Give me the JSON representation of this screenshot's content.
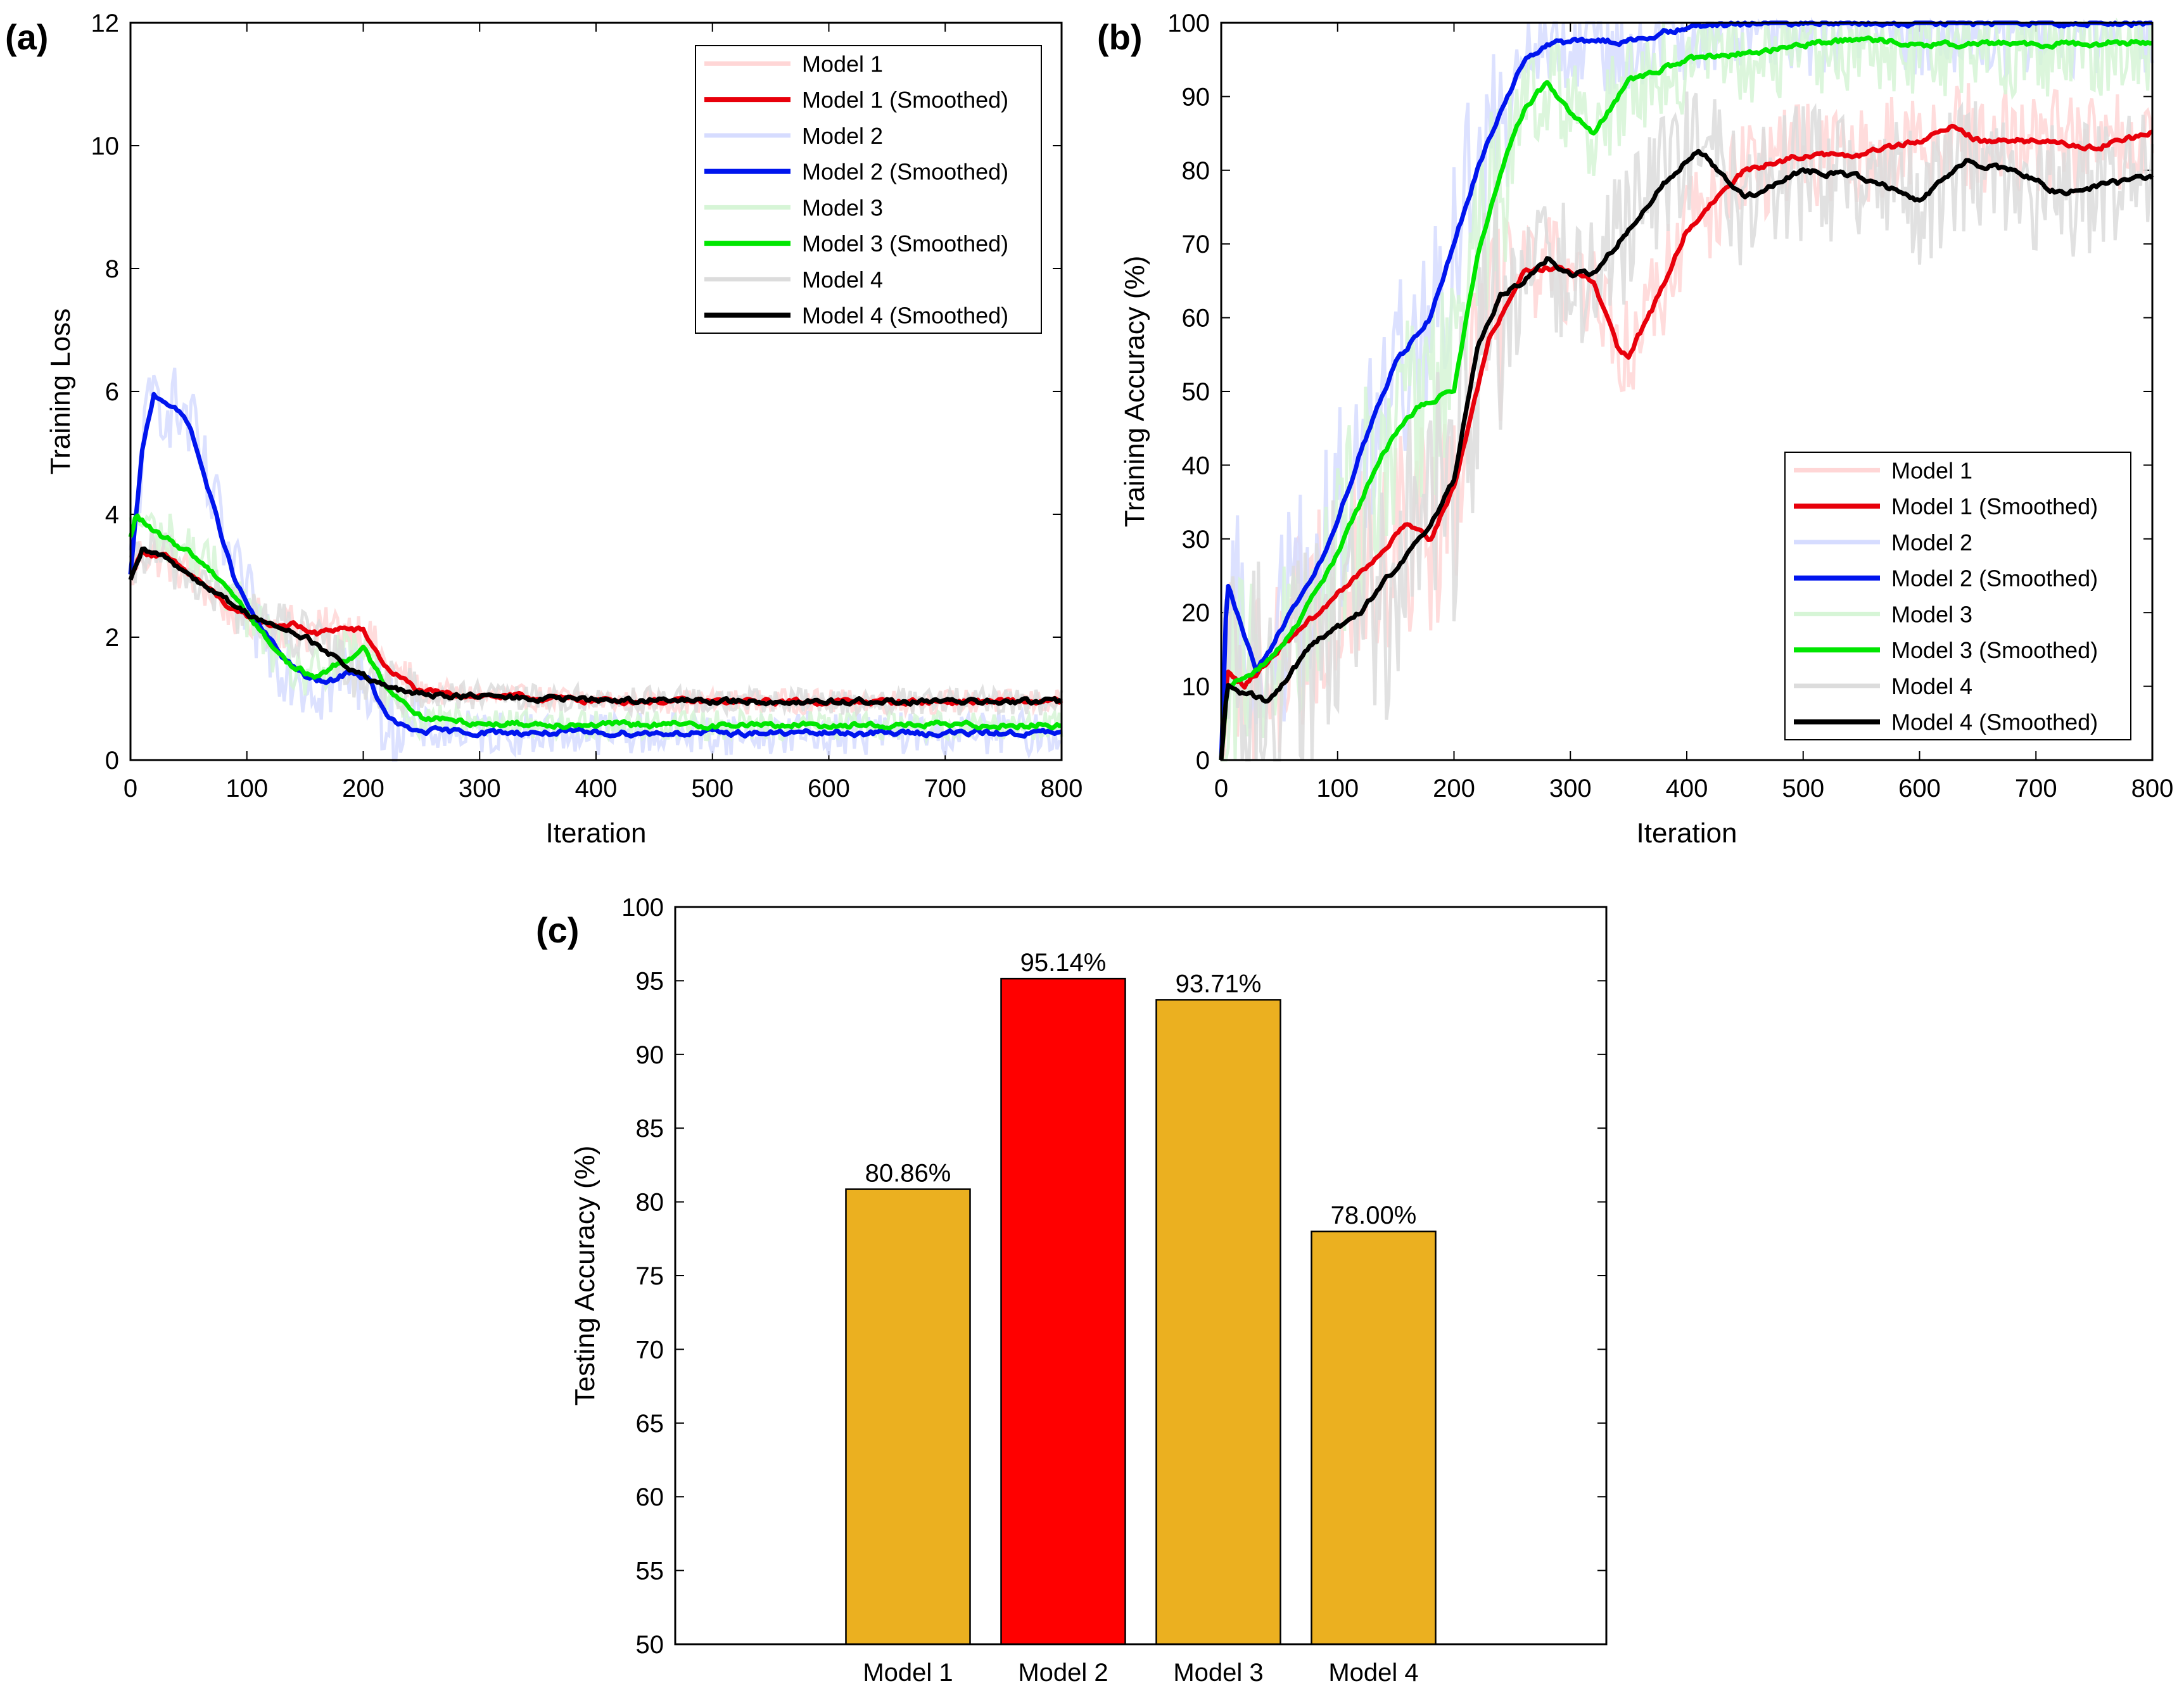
{
  "figure": {
    "panel_labels": [
      "(a)",
      "(b)",
      "(c)"
    ]
  },
  "chart_data": [
    {
      "id": "a",
      "type": "line",
      "title": "",
      "xlabel": "Iteration",
      "ylabel": "Training Loss",
      "xlim": [
        0,
        800
      ],
      "ylim": [
        0,
        12
      ],
      "xticks": [
        0,
        100,
        200,
        300,
        400,
        500,
        600,
        700,
        800
      ],
      "yticks": [
        0,
        2,
        4,
        6,
        8,
        10,
        12
      ],
      "legend_position": "top-right",
      "series": [
        {
          "name": "Model 1",
          "color": "#ffd6d6",
          "raw": true,
          "noise": 0.25,
          "x": [
            0,
            10,
            30,
            60,
            90,
            120,
            140,
            160,
            180,
            200,
            220,
            250,
            300,
            400,
            500,
            600,
            700,
            800
          ],
          "y": [
            3.0,
            3.4,
            3.3,
            2.9,
            2.4,
            2.2,
            2.2,
            2.05,
            2.15,
            2.1,
            1.5,
            1.1,
            1.05,
            0.97,
            0.95,
            0.95,
            0.95,
            0.95
          ]
        },
        {
          "name": "Model 1 (Smoothed)",
          "color": "#e8000b",
          "raw": false,
          "x": [
            0,
            10,
            30,
            60,
            90,
            120,
            140,
            160,
            180,
            200,
            220,
            250,
            300,
            400,
            500,
            600,
            700,
            800
          ],
          "y": [
            3.0,
            3.4,
            3.3,
            2.9,
            2.4,
            2.2,
            2.2,
            2.05,
            2.15,
            2.1,
            1.5,
            1.1,
            1.05,
            0.97,
            0.95,
            0.95,
            0.95,
            0.95
          ]
        },
        {
          "name": "Model 2",
          "color": "#d6dcff",
          "raw": true,
          "noise": 0.45,
          "x": [
            0,
            10,
            20,
            30,
            50,
            70,
            90,
            110,
            130,
            150,
            170,
            190,
            205,
            220,
            240,
            300,
            400,
            500,
            600,
            700,
            800
          ],
          "y": [
            3.0,
            5.0,
            5.95,
            5.85,
            5.5,
            4.2,
            2.9,
            2.2,
            1.7,
            1.35,
            1.25,
            1.45,
            1.3,
            0.7,
            0.48,
            0.45,
            0.44,
            0.44,
            0.44,
            0.44,
            0.44
          ]
        },
        {
          "name": "Model 2 (Smoothed)",
          "color": "#0015ee",
          "raw": false,
          "x": [
            0,
            10,
            20,
            30,
            50,
            70,
            90,
            110,
            130,
            150,
            170,
            190,
            205,
            220,
            240,
            300,
            400,
            500,
            600,
            700,
            800
          ],
          "y": [
            3.0,
            5.0,
            5.95,
            5.85,
            5.5,
            4.2,
            2.9,
            2.2,
            1.7,
            1.35,
            1.25,
            1.45,
            1.3,
            0.7,
            0.48,
            0.45,
            0.44,
            0.44,
            0.44,
            0.44,
            0.44
          ]
        },
        {
          "name": "Model 3",
          "color": "#d6f5d6",
          "raw": true,
          "noise": 0.3,
          "x": [
            0,
            5,
            20,
            50,
            80,
            100,
            120,
            140,
            160,
            180,
            200,
            220,
            250,
            300,
            400,
            500,
            600,
            700,
            800
          ],
          "y": [
            3.6,
            4.0,
            3.7,
            3.4,
            2.9,
            2.4,
            1.9,
            1.5,
            1.35,
            1.6,
            1.8,
            1.2,
            0.7,
            0.6,
            0.58,
            0.57,
            0.57,
            0.57,
            0.57
          ]
        },
        {
          "name": "Model 3 (Smoothed)",
          "color": "#00e600",
          "raw": false,
          "x": [
            0,
            5,
            20,
            50,
            80,
            100,
            120,
            140,
            160,
            180,
            200,
            220,
            250,
            300,
            400,
            500,
            600,
            700,
            800
          ],
          "y": [
            3.6,
            4.0,
            3.7,
            3.4,
            2.9,
            2.4,
            1.9,
            1.5,
            1.35,
            1.6,
            1.8,
            1.2,
            0.7,
            0.6,
            0.58,
            0.57,
            0.57,
            0.57,
            0.57
          ]
        },
        {
          "name": "Model 4",
          "color": "#dcdcdc",
          "raw": true,
          "noise": 0.28,
          "x": [
            0,
            10,
            30,
            60,
            90,
            120,
            150,
            180,
            210,
            240,
            280,
            350,
            400,
            500,
            600,
            700,
            800
          ],
          "y": [
            2.9,
            3.4,
            3.3,
            2.9,
            2.5,
            2.2,
            2.0,
            1.6,
            1.25,
            1.08,
            1.05,
            1.0,
            0.98,
            0.96,
            0.95,
            0.95,
            0.95
          ]
        },
        {
          "name": "Model 4 (Smoothed)",
          "color": "#000000",
          "raw": false,
          "x": [
            0,
            10,
            30,
            60,
            90,
            120,
            150,
            180,
            210,
            240,
            280,
            350,
            400,
            500,
            600,
            700,
            800
          ],
          "y": [
            2.9,
            3.4,
            3.3,
            2.9,
            2.5,
            2.2,
            2.0,
            1.6,
            1.25,
            1.08,
            1.05,
            1.0,
            0.98,
            0.96,
            0.95,
            0.95,
            0.95
          ]
        }
      ]
    },
    {
      "id": "b",
      "type": "line",
      "title": "",
      "xlabel": "Iteration",
      "ylabel": "Training Accuracy (%)",
      "xlim": [
        0,
        800
      ],
      "ylim": [
        0,
        100
      ],
      "xticks": [
        0,
        100,
        200,
        300,
        400,
        500,
        600,
        700,
        800
      ],
      "yticks": [
        0,
        10,
        20,
        30,
        40,
        50,
        60,
        70,
        80,
        90,
        100
      ],
      "legend_position": "bottom-right",
      "series": [
        {
          "name": "Model 1",
          "color": "#ffd6d6",
          "raw": true,
          "noise": 9,
          "x": [
            0,
            5,
            20,
            50,
            90,
            130,
            160,
            180,
            200,
            230,
            260,
            280,
            300,
            320,
            340,
            350,
            370,
            400,
            450,
            500,
            550,
            600,
            630,
            650,
            700,
            750,
            800
          ],
          "y": [
            0,
            12,
            10,
            15,
            21,
            27,
            32,
            30,
            37,
            57,
            66,
            67,
            66,
            65,
            56,
            55,
            61,
            72,
            80,
            82,
            82,
            84,
            86,
            84,
            84,
            83,
            85
          ]
        },
        {
          "name": "Model 1 (Smoothed)",
          "color": "#e8000b",
          "raw": false,
          "x": [
            0,
            5,
            20,
            50,
            90,
            130,
            160,
            180,
            200,
            230,
            260,
            280,
            300,
            320,
            340,
            350,
            370,
            400,
            450,
            500,
            550,
            600,
            630,
            650,
            700,
            750,
            800
          ],
          "y": [
            0,
            12,
            10,
            15,
            21,
            27,
            32,
            30,
            37,
            57,
            66,
            67,
            66,
            65,
            56,
            55,
            61,
            72,
            80,
            82,
            82,
            84,
            86,
            84,
            84,
            83,
            85
          ]
        },
        {
          "name": "Model 2",
          "color": "#d6dcff",
          "raw": true,
          "noise": 9,
          "x": [
            0,
            5,
            30,
            60,
            90,
            120,
            150,
            180,
            200,
            220,
            240,
            260,
            280,
            300,
            350,
            400,
            500,
            600,
            700,
            800
          ],
          "y": [
            0,
            24,
            12,
            20,
            28,
            42,
            54,
            60,
            70,
            80,
            88,
            95,
            97,
            97.5,
            97.5,
            99.5,
            100,
            100,
            100,
            100
          ]
        },
        {
          "name": "Model 2 (Smoothed)",
          "color": "#0015ee",
          "raw": false,
          "x": [
            0,
            5,
            30,
            60,
            90,
            120,
            150,
            180,
            200,
            220,
            240,
            260,
            280,
            300,
            350,
            400,
            500,
            600,
            700,
            800
          ],
          "y": [
            0,
            24,
            12,
            20,
            28,
            42,
            54,
            60,
            70,
            80,
            88,
            95,
            97,
            97.5,
            97.5,
            99.5,
            100,
            100,
            100,
            100
          ]
        },
        {
          "name": "Model 3",
          "color": "#d6f5d6",
          "raw": true,
          "noise": 9,
          "x": [
            0,
            5,
            30,
            60,
            100,
            140,
            170,
            200,
            220,
            240,
            260,
            280,
            300,
            320,
            350,
            400,
            450,
            500,
            550,
            600,
            700,
            800
          ],
          "y": [
            0,
            10,
            12,
            17,
            28,
            42,
            48,
            50,
            68,
            80,
            88,
            92,
            88,
            85,
            92,
            95,
            96,
            97,
            98,
            97,
            97,
            97.5
          ]
        },
        {
          "name": "Model 3 (Smoothed)",
          "color": "#00e600",
          "raw": false,
          "x": [
            0,
            5,
            30,
            60,
            100,
            140,
            170,
            200,
            220,
            240,
            260,
            280,
            300,
            320,
            350,
            400,
            450,
            500,
            550,
            600,
            700,
            800
          ],
          "y": [
            0,
            10,
            12,
            17,
            28,
            42,
            48,
            50,
            68,
            80,
            88,
            92,
            88,
            85,
            92,
            95,
            96,
            97,
            98,
            97,
            97,
            97.5
          ]
        },
        {
          "name": "Model 4",
          "color": "#dcdcdc",
          "raw": true,
          "noise": 12,
          "x": [
            0,
            5,
            40,
            80,
            120,
            150,
            180,
            200,
            220,
            240,
            260,
            280,
            300,
            320,
            350,
            380,
            410,
            450,
            500,
            550,
            600,
            640,
            680,
            720,
            760,
            800
          ],
          "y": [
            0,
            10,
            8,
            16,
            20,
            26,
            32,
            38,
            56,
            63,
            65,
            68,
            66,
            66,
            72,
            78,
            83,
            76,
            80,
            79,
            76,
            81,
            80,
            77,
            78,
            79
          ]
        },
        {
          "name": "Model 4 (Smoothed)",
          "color": "#000000",
          "raw": false,
          "x": [
            0,
            5,
            40,
            80,
            120,
            150,
            180,
            200,
            220,
            240,
            260,
            280,
            300,
            320,
            350,
            380,
            410,
            450,
            500,
            550,
            600,
            640,
            680,
            720,
            760,
            800
          ],
          "y": [
            0,
            10,
            8,
            16,
            20,
            26,
            32,
            38,
            56,
            63,
            65,
            68,
            66,
            66,
            72,
            78,
            83,
            76,
            80,
            79,
            76,
            81,
            80,
            77,
            78,
            79
          ]
        }
      ]
    },
    {
      "id": "c",
      "type": "bar",
      "title": "",
      "xlabel": "",
      "ylabel": "Testing Accuracy (%)",
      "ylim": [
        50,
        100
      ],
      "yticks": [
        50,
        55,
        60,
        65,
        70,
        75,
        80,
        85,
        90,
        95,
        100
      ],
      "categories": [
        "Model 1",
        "Model 2",
        "Model 3",
        "Model 4"
      ],
      "values": [
        80.86,
        95.14,
        93.71,
        78.0
      ],
      "data_labels": [
        "80.86%",
        "95.14%",
        "93.71%",
        "78.00%"
      ],
      "colors": [
        "#ebb020",
        "#ff0000",
        "#ebb020",
        "#ebb020"
      ]
    }
  ]
}
